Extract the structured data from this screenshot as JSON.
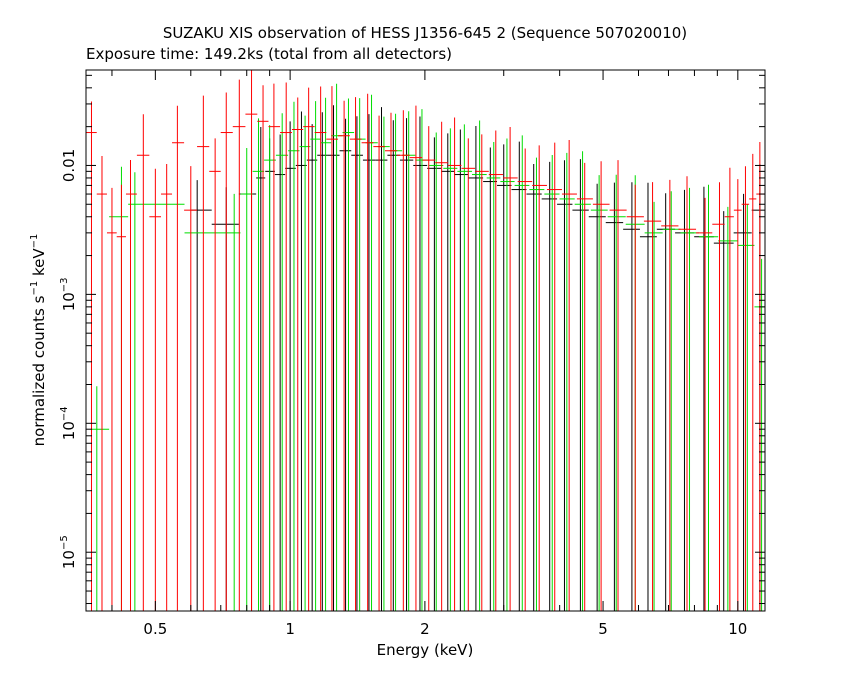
{
  "chart_data": {
    "type": "scatter",
    "title": "SUZAKU XIS observation of HESS J1356-645 2 (Sequence 507020010)",
    "subtitle": "Exposure time: 149.2ks (total from all detectors)",
    "xlabel": "Energy (keV)",
    "ylabel_main": "normalized counts s",
    "ylabel_sup1": "−1",
    "ylabel_mid": " keV",
    "ylabel_sup2": "−1",
    "x_scale": "log",
    "y_scale": "log",
    "xlim": [
      0.35,
      11.5
    ],
    "ylim": [
      3.5e-06,
      0.055
    ],
    "x_ticks": [
      {
        "value": 0.5,
        "label": "0.5"
      },
      {
        "value": 1,
        "label": "1"
      },
      {
        "value": 2,
        "label": "2"
      },
      {
        "value": 5,
        "label": "5"
      },
      {
        "value": 10,
        "label": "10"
      }
    ],
    "y_ticks": [
      {
        "value": 0.01,
        "label": "0.01",
        "exp": ""
      },
      {
        "value": 0.001,
        "label": "10",
        "exp": "−3"
      },
      {
        "value": 0.0001,
        "label": "10",
        "exp": "−4"
      },
      {
        "value": 1e-05,
        "label": "10",
        "exp": "−5"
      }
    ],
    "series": [
      {
        "color": "#000000",
        "x": [
          0.62,
          0.72,
          0.82,
          0.86,
          0.9,
          0.95,
          1.0,
          1.06,
          1.12,
          1.18,
          1.25,
          1.33,
          1.41,
          1.5,
          1.6,
          1.7,
          1.82,
          1.95,
          2.1,
          2.25,
          2.4,
          2.6,
          2.8,
          3.0,
          3.25,
          3.5,
          3.8,
          4.1,
          4.45,
          4.85,
          5.3,
          5.8,
          6.3,
          6.9,
          7.6,
          8.4,
          9.3,
          10.3,
          11.2
        ],
        "y": [
          0.0045,
          0.0035,
          0.006,
          0.008,
          0.009,
          0.0085,
          0.0095,
          0.01,
          0.011,
          0.012,
          0.012,
          0.013,
          0.012,
          0.011,
          0.011,
          0.012,
          0.011,
          0.01,
          0.0095,
          0.009,
          0.0085,
          0.008,
          0.0075,
          0.007,
          0.0065,
          0.006,
          0.0055,
          0.005,
          0.0045,
          0.004,
          0.0036,
          0.0032,
          0.0028,
          0.0032,
          0.003,
          0.0028,
          0.0025,
          0.003,
          0.0045
        ]
      },
      {
        "color": "#00dd00",
        "x": [
          0.37,
          0.42,
          0.45,
          0.75,
          0.8,
          0.85,
          0.9,
          0.96,
          1.02,
          1.08,
          1.14,
          1.2,
          1.27,
          1.35,
          1.43,
          1.52,
          1.62,
          1.72,
          1.84,
          1.97,
          2.12,
          2.28,
          2.45,
          2.65,
          2.85,
          3.05,
          3.3,
          3.55,
          3.85,
          4.15,
          4.5,
          4.9,
          5.35,
          5.9,
          6.5,
          7.1,
          7.8,
          8.6,
          9.5,
          10.5,
          11.3
        ],
        "y": [
          9e-05,
          0.004,
          0.005,
          0.003,
          0.006,
          0.009,
          0.011,
          0.012,
          0.013,
          0.014,
          0.016,
          0.015,
          0.017,
          0.018,
          0.016,
          0.015,
          0.014,
          0.013,
          0.012,
          0.011,
          0.01,
          0.0095,
          0.009,
          0.0085,
          0.008,
          0.0075,
          0.007,
          0.0065,
          0.006,
          0.0055,
          0.005,
          0.0045,
          0.004,
          0.0035,
          0.003,
          0.0032,
          0.003,
          0.0028,
          0.0026,
          0.0024,
          0.0008
        ]
      },
      {
        "color": "#ff0000",
        "x": [
          0.36,
          0.38,
          0.4,
          0.42,
          0.44,
          0.47,
          0.5,
          0.53,
          0.56,
          0.6,
          0.64,
          0.68,
          0.72,
          0.77,
          0.82,
          0.87,
          0.92,
          0.98,
          1.04,
          1.1,
          1.17,
          1.24,
          1.32,
          1.4,
          1.49,
          1.58,
          1.68,
          1.79,
          1.91,
          2.04,
          2.18,
          2.33,
          2.5,
          2.68,
          2.88,
          3.1,
          3.35,
          3.6,
          3.9,
          4.2,
          4.55,
          4.95,
          5.4,
          5.9,
          6.45,
          7.05,
          7.7,
          8.45,
          9.1,
          9.6,
          10.0,
          10.4,
          10.8,
          11.2
        ],
        "y": [
          0.018,
          0.006,
          0.003,
          0.0028,
          0.006,
          0.012,
          0.004,
          0.006,
          0.015,
          0.0045,
          0.014,
          0.009,
          0.018,
          0.02,
          0.025,
          0.022,
          0.02,
          0.018,
          0.019,
          0.02,
          0.018,
          0.016,
          0.017,
          0.016,
          0.015,
          0.014,
          0.013,
          0.012,
          0.0115,
          0.011,
          0.0105,
          0.01,
          0.0095,
          0.009,
          0.0085,
          0.008,
          0.0075,
          0.007,
          0.0065,
          0.006,
          0.0055,
          0.005,
          0.0045,
          0.004,
          0.0037,
          0.0034,
          0.0032,
          0.003,
          0.0035,
          0.004,
          0.0045,
          0.005,
          0.0055,
          0.006
        ]
      }
    ]
  }
}
